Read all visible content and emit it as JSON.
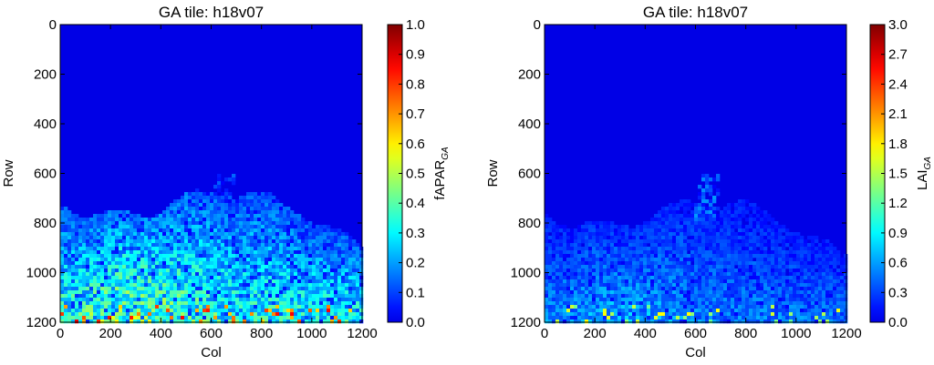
{
  "chart_data": [
    {
      "type": "heatmap",
      "title": "GA tile: h18v07",
      "xlabel": "Col",
      "ylabel": "Row",
      "xlim": [
        0,
        1200
      ],
      "ylim": [
        1200,
        0
      ],
      "xticks": [
        "0",
        "200",
        "400",
        "600",
        "800",
        "1000",
        "1200"
      ],
      "yticks": [
        "0",
        "200",
        "400",
        "600",
        "800",
        "1000",
        "1200"
      ],
      "colorbar": {
        "label": "fAPAR",
        "label_subscript": "GA",
        "range": [
          0.0,
          1.0
        ],
        "ticks": [
          "0.0",
          "0.1",
          "0.2",
          "0.3",
          "0.4",
          "0.5",
          "0.6",
          "0.7",
          "0.8",
          "0.9",
          "1.0"
        ],
        "colormap": "jet"
      },
      "data_profile": {
        "background_value": 0.0,
        "band_start_row": 720,
        "peak_value": 0.9,
        "typical_lower_value": 0.4
      }
    },
    {
      "type": "heatmap",
      "title": "GA tile: h18v07",
      "xlabel": "Col",
      "ylabel": "Row",
      "xlim": [
        0,
        1200
      ],
      "ylim": [
        1200,
        0
      ],
      "xticks": [
        "0",
        "200",
        "400",
        "600",
        "800",
        "1000",
        "1200"
      ],
      "yticks": [
        "0",
        "200",
        "400",
        "600",
        "800",
        "1000",
        "1200"
      ],
      "colorbar": {
        "label": "LAI",
        "label_subscript": "GA",
        "range": [
          0.0,
          3.0
        ],
        "ticks": [
          "0.0",
          "0.3",
          "0.6",
          "0.9",
          "1.2",
          "1.5",
          "1.8",
          "2.1",
          "2.4",
          "2.7",
          "3.0"
        ],
        "colormap": "jet"
      },
      "data_profile": {
        "background_value": 0.0,
        "band_start_row": 760,
        "peak_value": 1.8,
        "typical_lower_value": 0.6
      }
    }
  ]
}
